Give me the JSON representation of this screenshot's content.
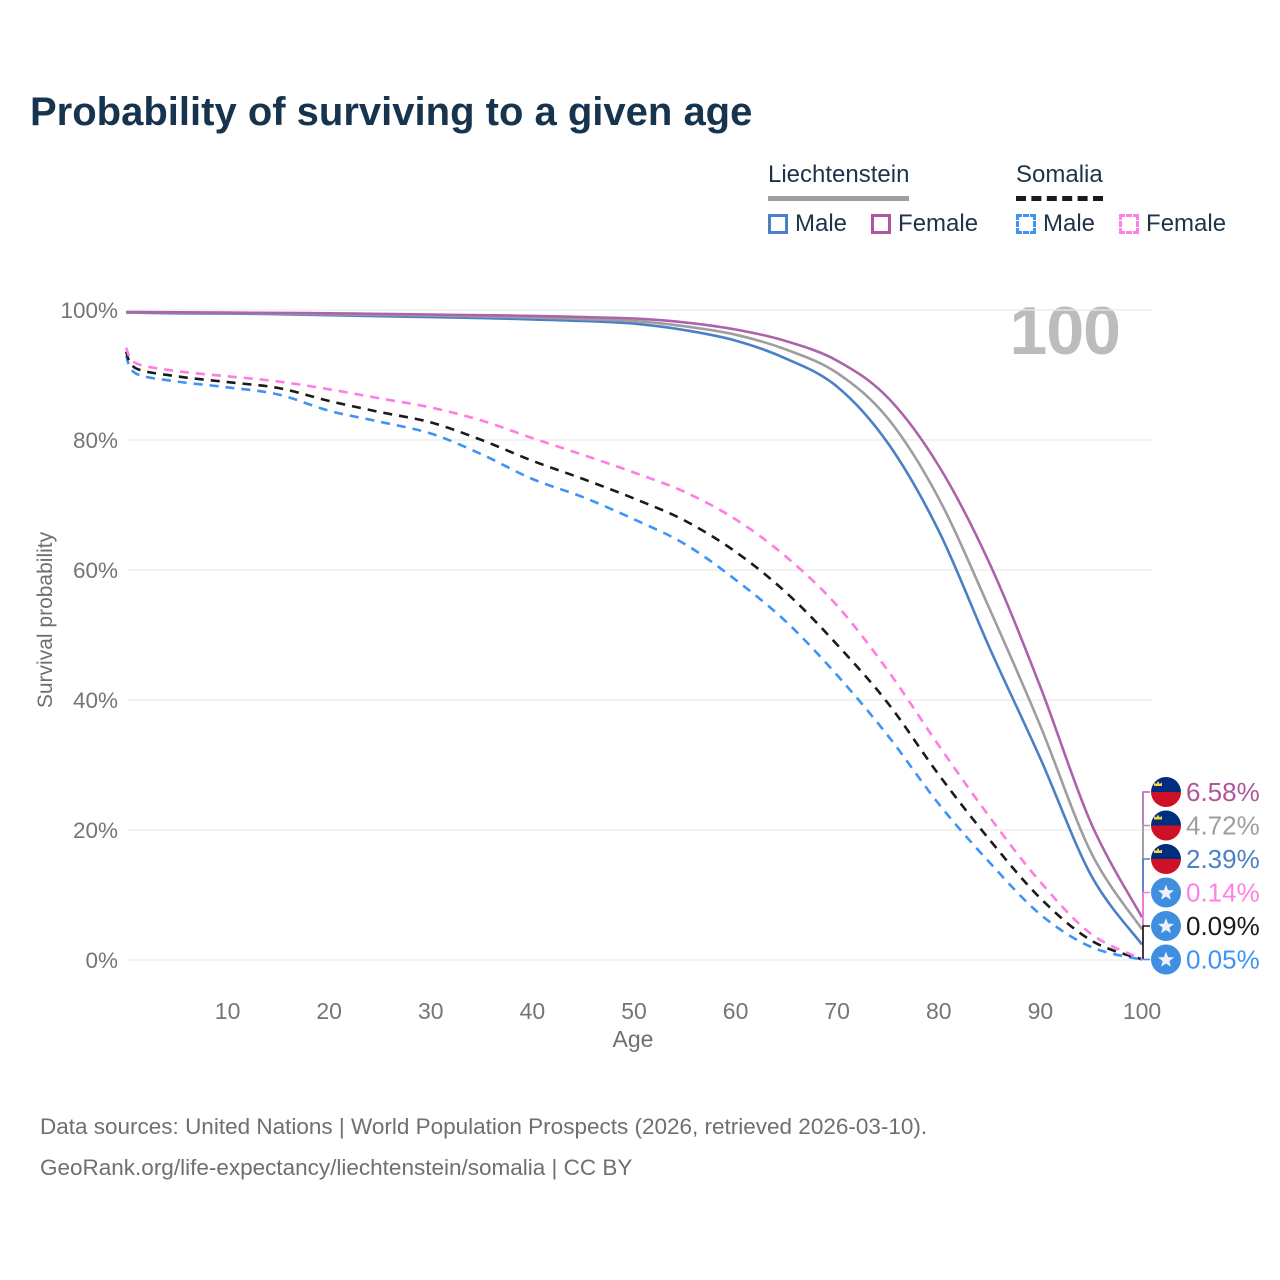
{
  "title": "Probability of surviving to a given age",
  "watermark": "100",
  "legend": {
    "groups": [
      {
        "country": "Liechtenstein",
        "line_style": "solid",
        "underline_color": "#9e9e9e",
        "items": [
          {
            "label": "Male",
            "color": "#4b80c6"
          },
          {
            "label": "Female",
            "color": "#b0569c"
          }
        ]
      },
      {
        "country": "Somalia",
        "line_style": "dashed",
        "underline_color": "#1a1a1a",
        "items": [
          {
            "label": "Male",
            "color": "#3e93f7"
          },
          {
            "label": "Female",
            "color": "#ff80e8"
          }
        ]
      }
    ]
  },
  "footer": {
    "line1": "Data sources: United Nations | World Population Prospects (2026, retrieved 2026-03-10).",
    "line2": "GeoRank.org/life-expectancy/liechtenstein/somalia | CC BY"
  },
  "colors": {
    "title": "#17344e",
    "grid": "#ebebeb",
    "tick_text": "#757575",
    "watermark": "#bcbcbc",
    "flag_liechtenstein_blue": "#002d7f",
    "flag_liechtenstein_red": "#ce1126",
    "flag_liechtenstein_crown": "#ffd83d",
    "flag_somalia_blue": "#3f8ee0",
    "flag_somalia_star": "#edf2f8"
  },
  "chart_data": {
    "type": "line",
    "title": "Probability of surviving to a given age",
    "xlabel": "Age",
    "ylabel": "Survival probability",
    "xlim": [
      0,
      100
    ],
    "ylim": [
      0,
      100
    ],
    "x_ticks": [
      10,
      20,
      30,
      40,
      50,
      60,
      70,
      80,
      90,
      100
    ],
    "y_ticks": [
      0,
      20,
      40,
      60,
      80,
      100
    ],
    "y_tick_format": "percent",
    "grid": "horizontal",
    "legend_position": "top-right",
    "series": [
      {
        "name": "Liechtenstein — Female",
        "country": "Liechtenstein",
        "sex": "Female",
        "color": "#ad63ac",
        "label_color": "#b0569c",
        "dash": false,
        "flag": "liechtenstein",
        "end_label": "6.58%",
        "end_value": 6.58,
        "points": [
          [
            0,
            99.7
          ],
          [
            5,
            99.65
          ],
          [
            10,
            99.6
          ],
          [
            15,
            99.55
          ],
          [
            20,
            99.5
          ],
          [
            25,
            99.4
          ],
          [
            30,
            99.3
          ],
          [
            35,
            99.2
          ],
          [
            40,
            99.1
          ],
          [
            45,
            98.9
          ],
          [
            50,
            98.7
          ],
          [
            55,
            98.1
          ],
          [
            60,
            97.0
          ],
          [
            65,
            95.2
          ],
          [
            70,
            92.2
          ],
          [
            75,
            86.5
          ],
          [
            80,
            76.0
          ],
          [
            85,
            61.0
          ],
          [
            90,
            42.0
          ],
          [
            95,
            21.0
          ],
          [
            100,
            6.58
          ]
        ]
      },
      {
        "name": "Liechtenstein — Both sexes",
        "country": "Liechtenstein",
        "sex": "Both sexes",
        "color": "#9e9e9e",
        "label_color": "#9e9e9e",
        "dash": false,
        "flag": "liechtenstein",
        "end_label": "4.72%",
        "end_value": 4.72,
        "points": [
          [
            0,
            99.65
          ],
          [
            5,
            99.6
          ],
          [
            10,
            99.55
          ],
          [
            15,
            99.45
          ],
          [
            20,
            99.35
          ],
          [
            25,
            99.25
          ],
          [
            30,
            99.15
          ],
          [
            35,
            99.0
          ],
          [
            40,
            98.85
          ],
          [
            45,
            98.6
          ],
          [
            50,
            98.3
          ],
          [
            55,
            97.5
          ],
          [
            60,
            96.2
          ],
          [
            65,
            93.9
          ],
          [
            70,
            90.3
          ],
          [
            75,
            83.3
          ],
          [
            80,
            71.0
          ],
          [
            85,
            54.0
          ],
          [
            90,
            36.0
          ],
          [
            95,
            16.5
          ],
          [
            100,
            4.72
          ]
        ]
      },
      {
        "name": "Liechtenstein — Male",
        "country": "Liechtenstein",
        "sex": "Male",
        "color": "#4b80c6",
        "label_color": "#4b80c6",
        "dash": false,
        "flag": "liechtenstein",
        "end_label": "2.39%",
        "end_value": 2.39,
        "points": [
          [
            0,
            99.6
          ],
          [
            5,
            99.5
          ],
          [
            10,
            99.45
          ],
          [
            15,
            99.35
          ],
          [
            20,
            99.2
          ],
          [
            25,
            99.05
          ],
          [
            30,
            98.9
          ],
          [
            35,
            98.75
          ],
          [
            40,
            98.55
          ],
          [
            45,
            98.3
          ],
          [
            50,
            97.9
          ],
          [
            55,
            96.9
          ],
          [
            60,
            95.3
          ],
          [
            65,
            92.5
          ],
          [
            70,
            88.2
          ],
          [
            75,
            79.5
          ],
          [
            80,
            66.0
          ],
          [
            85,
            48.0
          ],
          [
            90,
            31.0
          ],
          [
            95,
            13.0
          ],
          [
            100,
            2.39
          ]
        ]
      },
      {
        "name": "Somalia — Female",
        "country": "Somalia",
        "sex": "Female",
        "color": "#ff7ce4",
        "label_color": "#ff80e8",
        "dash": true,
        "flag": "somalia",
        "end_label": "0.14%",
        "end_value": 0.14,
        "points": [
          [
            0,
            94.2
          ],
          [
            1,
            91.8
          ],
          [
            5,
            90.6
          ],
          [
            10,
            89.8
          ],
          [
            15,
            89.0
          ],
          [
            20,
            87.8
          ],
          [
            25,
            86.4
          ],
          [
            30,
            85.0
          ],
          [
            35,
            83.0
          ],
          [
            40,
            80.3
          ],
          [
            45,
            77.7
          ],
          [
            50,
            75.0
          ],
          [
            55,
            72.0
          ],
          [
            60,
            67.8
          ],
          [
            65,
            62.0
          ],
          [
            70,
            54.5
          ],
          [
            75,
            44.5
          ],
          [
            80,
            33.0
          ],
          [
            85,
            22.0
          ],
          [
            90,
            12.0
          ],
          [
            95,
            4.0
          ],
          [
            100,
            0.14
          ]
        ]
      },
      {
        "name": "Somalia — Both sexes",
        "country": "Somalia",
        "sex": "Both sexes",
        "color": "#1a1a1a",
        "label_color": "#1a1a1a",
        "dash": true,
        "flag": "somalia",
        "end_label": "0.09%",
        "end_value": 0.09,
        "points": [
          [
            0,
            93.6
          ],
          [
            1,
            91.0
          ],
          [
            5,
            89.8
          ],
          [
            10,
            88.9
          ],
          [
            15,
            88.0
          ],
          [
            20,
            86.0
          ],
          [
            25,
            84.3
          ],
          [
            30,
            82.7
          ],
          [
            35,
            80.0
          ],
          [
            40,
            76.8
          ],
          [
            45,
            74.0
          ],
          [
            50,
            71.0
          ],
          [
            55,
            67.6
          ],
          [
            60,
            62.8
          ],
          [
            65,
            56.5
          ],
          [
            70,
            48.5
          ],
          [
            75,
            39.5
          ],
          [
            80,
            28.5
          ],
          [
            85,
            18.5
          ],
          [
            90,
            9.5
          ],
          [
            95,
            3.0
          ],
          [
            100,
            0.09
          ]
        ]
      },
      {
        "name": "Somalia — Male",
        "country": "Somalia",
        "sex": "Male",
        "color": "#3e93f7",
        "label_color": "#3e93f7",
        "dash": true,
        "flag": "somalia",
        "end_label": "0.05%",
        "end_value": 0.05,
        "points": [
          [
            0,
            93.0
          ],
          [
            1,
            90.2
          ],
          [
            5,
            89.0
          ],
          [
            10,
            88.1
          ],
          [
            15,
            87.0
          ],
          [
            20,
            84.5
          ],
          [
            25,
            82.8
          ],
          [
            30,
            81.0
          ],
          [
            35,
            77.8
          ],
          [
            40,
            74.0
          ],
          [
            45,
            71.2
          ],
          [
            50,
            67.8
          ],
          [
            55,
            64.0
          ],
          [
            60,
            58.5
          ],
          [
            65,
            52.0
          ],
          [
            70,
            43.8
          ],
          [
            75,
            34.5
          ],
          [
            80,
            24.0
          ],
          [
            85,
            15.0
          ],
          [
            90,
            7.0
          ],
          [
            95,
            2.0
          ],
          [
            100,
            0.05
          ]
        ]
      }
    ]
  }
}
